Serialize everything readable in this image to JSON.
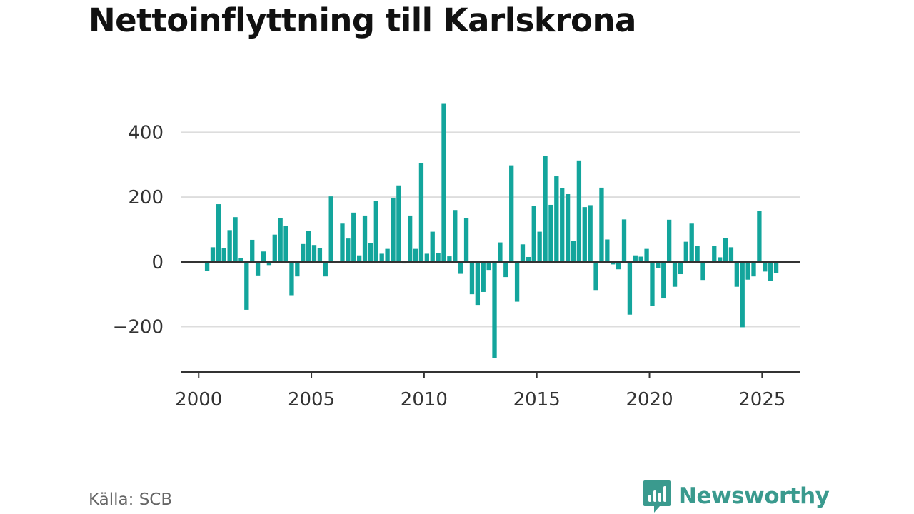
{
  "title": "Nettoinflyttning till Karlskrona",
  "source": "Källa: SCB",
  "brand": {
    "name": "Newsworthy",
    "icon": "bar-chart-speech-bubble-icon"
  },
  "colors": {
    "bar": "#13a59c",
    "grid": "#dddddd",
    "axis": "#333333",
    "brand": "#3a9a8e"
  },
  "chart_data": {
    "type": "bar",
    "title": "Nettoinflyttning till Karlskrona",
    "xlabel": "",
    "ylabel": "",
    "ylim": [
      -340,
      500
    ],
    "xlim": [
      1999.2,
      2026.7
    ],
    "grid": true,
    "legend": "none",
    "x_ticks": [
      2000,
      2005,
      2010,
      2015,
      2020,
      2025
    ],
    "y_ticks": [
      -200,
      0,
      200,
      400
    ],
    "x_tick_labels": [
      "2000",
      "2005",
      "2010",
      "2015",
      "2020",
      "2025"
    ],
    "y_tick_labels": [
      "−200",
      "0",
      "200",
      "400"
    ],
    "start": "2000-Q1",
    "frequency": "quarterly",
    "values": [
      0,
      -28,
      45,
      178,
      42,
      98,
      138,
      12,
      -148,
      68,
      -42,
      32,
      -10,
      84,
      136,
      112,
      -103,
      -45,
      55,
      95,
      52,
      42,
      -45,
      202,
      0,
      118,
      72,
      152,
      20,
      143,
      57,
      187,
      25,
      40,
      198,
      236,
      -5,
      143,
      40,
      305,
      25,
      93,
      28,
      490,
      17,
      160,
      -37,
      136,
      -100,
      -133,
      -93,
      -25,
      -297,
      60,
      -47,
      298,
      -123,
      54,
      15,
      173,
      93,
      326,
      176,
      264,
      228,
      209,
      64,
      313,
      169,
      175,
      -87,
      229,
      69,
      -8,
      -23,
      131,
      -163,
      20,
      16,
      40,
      -135,
      -20,
      -113,
      130,
      -77,
      -38,
      62,
      118,
      50,
      -56,
      0,
      50,
      14,
      73,
      45,
      -77,
      -202,
      -55,
      -45,
      157,
      -30,
      -60,
      -35
    ]
  }
}
